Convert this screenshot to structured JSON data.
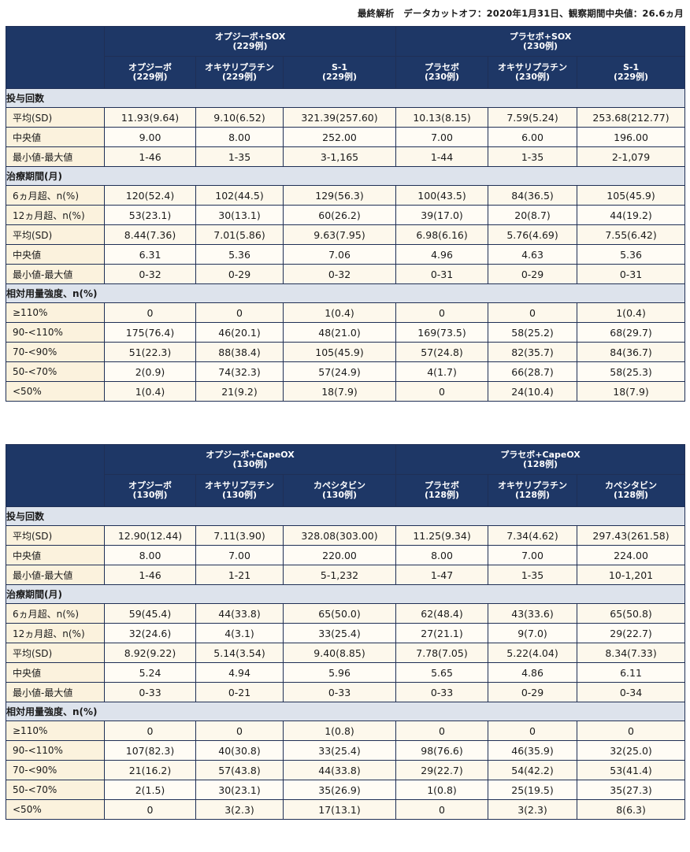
{
  "caption": "最終解析　データカットオフ：2020年1月31日、観察期間中央値：26.6ヵ月",
  "table1": {
    "group_a": "オプジーボ+SOX\n(229例)",
    "group_b": "プラセボ+SOX\n(230例)",
    "cols": [
      "オプジーボ\n(229例)",
      "オキサリプラチン\n(229例)",
      "S-1\n(229例)",
      "プラセボ\n(230例)",
      "オキサリプラチン\n(230例)",
      "S-1\n(229例)"
    ],
    "sections": [
      {
        "title": "投与回数",
        "rows": [
          {
            "label": "平均(SD)",
            "values": [
              "11.93(9.64)",
              "9.10(6.52)",
              "321.39(257.60)",
              "10.13(8.15)",
              "7.59(5.24)",
              "253.68(212.77)"
            ]
          },
          {
            "label": "中央値",
            "values": [
              "9.00",
              "8.00",
              "252.00",
              "7.00",
              "6.00",
              "196.00"
            ]
          },
          {
            "label": "最小値-最大値",
            "values": [
              "1-46",
              "1-35",
              "3-1,165",
              "1-44",
              "1-35",
              "2-1,079"
            ]
          }
        ]
      },
      {
        "title": "治療期間(月)",
        "rows": [
          {
            "label": "6ヵ月超、n(%)",
            "values": [
              "120(52.4)",
              "102(44.5)",
              "129(56.3)",
              "100(43.5)",
              "84(36.5)",
              "105(45.9)"
            ]
          },
          {
            "label": "12ヵ月超、n(%)",
            "values": [
              "53(23.1)",
              "30(13.1)",
              "60(26.2)",
              "39(17.0)",
              "20(8.7)",
              "44(19.2)"
            ]
          },
          {
            "label": "平均(SD)",
            "values": [
              "8.44(7.36)",
              "7.01(5.86)",
              "9.63(7.95)",
              "6.98(6.16)",
              "5.76(4.69)",
              "7.55(6.42)"
            ]
          },
          {
            "label": "中央値",
            "values": [
              "6.31",
              "5.36",
              "7.06",
              "4.96",
              "4.63",
              "5.36"
            ]
          },
          {
            "label": "最小値-最大値",
            "values": [
              "0-32",
              "0-29",
              "0-32",
              "0-31",
              "0-29",
              "0-31"
            ]
          }
        ]
      },
      {
        "title": "相対用量強度、n(%)",
        "rows": [
          {
            "label": "≥110%",
            "values": [
              "0",
              "0",
              "1(0.4)",
              "0",
              "0",
              "1(0.4)"
            ]
          },
          {
            "label": "90-<110%",
            "values": [
              "175(76.4)",
              "46(20.1)",
              "48(21.0)",
              "169(73.5)",
              "58(25.2)",
              "68(29.7)"
            ]
          },
          {
            "label": "70-<90%",
            "values": [
              "51(22.3)",
              "88(38.4)",
              "105(45.9)",
              "57(24.8)",
              "82(35.7)",
              "84(36.7)"
            ]
          },
          {
            "label": "50-<70%",
            "values": [
              "2(0.9)",
              "74(32.3)",
              "57(24.9)",
              "4(1.7)",
              "66(28.7)",
              "58(25.3)"
            ]
          },
          {
            "label": "<50%",
            "values": [
              "1(0.4)",
              "21(9.2)",
              "18(7.9)",
              "0",
              "24(10.4)",
              "18(7.9)"
            ]
          }
        ]
      }
    ]
  },
  "table2": {
    "group_a": "オプジーボ+CapeOX\n(130例)",
    "group_b": "プラセボ+CapeOX\n(128例)",
    "cols": [
      "オプジーボ\n(130例)",
      "オキサリプラチン\n(130例)",
      "カペシタビン\n(130例)",
      "プラセボ\n(128例)",
      "オキサリプラチン\n(128例)",
      "カペシタビン\n(128例)"
    ],
    "sections": [
      {
        "title": "投与回数",
        "rows": [
          {
            "label": "平均(SD)",
            "values": [
              "12.90(12.44)",
              "7.11(3.90)",
              "328.08(303.00)",
              "11.25(9.34)",
              "7.34(4.62)",
              "297.43(261.58)"
            ]
          },
          {
            "label": "中央値",
            "values": [
              "8.00",
              "7.00",
              "220.00",
              "8.00",
              "7.00",
              "224.00"
            ]
          },
          {
            "label": "最小値-最大値",
            "values": [
              "1-46",
              "1-21",
              "5-1,232",
              "1-47",
              "1-35",
              "10-1,201"
            ]
          }
        ]
      },
      {
        "title": "治療期間(月)",
        "rows": [
          {
            "label": "6ヵ月超、n(%)",
            "values": [
              "59(45.4)",
              "44(33.8)",
              "65(50.0)",
              "62(48.4)",
              "43(33.6)",
              "65(50.8)"
            ]
          },
          {
            "label": "12ヵ月超、n(%)",
            "values": [
              "32(24.6)",
              "4(3.1)",
              "33(25.4)",
              "27(21.1)",
              "9(7.0)",
              "29(22.7)"
            ]
          },
          {
            "label": "平均(SD)",
            "values": [
              "8.92(9.22)",
              "5.14(3.54)",
              "9.40(8.85)",
              "7.78(7.05)",
              "5.22(4.04)",
              "8.34(7.33)"
            ]
          },
          {
            "label": "中央値",
            "values": [
              "5.24",
              "4.94",
              "5.96",
              "5.65",
              "4.86",
              "6.11"
            ]
          },
          {
            "label": "最小値-最大値",
            "values": [
              "0-33",
              "0-21",
              "0-33",
              "0-33",
              "0-29",
              "0-34"
            ]
          }
        ]
      },
      {
        "title": "相対用量強度、n(%)",
        "rows": [
          {
            "label": "≥110%",
            "values": [
              "0",
              "0",
              "1(0.8)",
              "0",
              "0",
              "0"
            ]
          },
          {
            "label": "90-<110%",
            "values": [
              "107(82.3)",
              "40(30.8)",
              "33(25.4)",
              "98(76.6)",
              "46(35.9)",
              "32(25.0)"
            ]
          },
          {
            "label": "70-<90%",
            "values": [
              "21(16.2)",
              "57(43.8)",
              "44(33.8)",
              "29(22.7)",
              "54(42.2)",
              "53(41.4)"
            ]
          },
          {
            "label": "50-<70%",
            "values": [
              "2(1.5)",
              "30(23.1)",
              "35(26.9)",
              "1(0.8)",
              "25(19.5)",
              "35(27.3)"
            ]
          },
          {
            "label": "<50%",
            "values": [
              "0",
              "3(2.3)",
              "17(13.1)",
              "0",
              "3(2.3)",
              "8(6.3)"
            ]
          }
        ]
      }
    ]
  }
}
